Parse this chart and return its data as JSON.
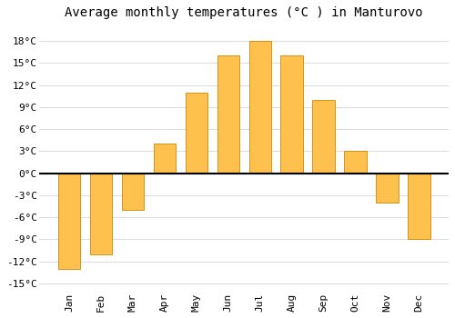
{
  "months": [
    "Jan",
    "Feb",
    "Mar",
    "Apr",
    "May",
    "Jun",
    "Jul",
    "Aug",
    "Sep",
    "Oct",
    "Nov",
    "Dec"
  ],
  "temperatures": [
    -13,
    -11,
    -5,
    4,
    11,
    16,
    18,
    16,
    10,
    3,
    -4,
    -9
  ],
  "bar_color": "#FFC14D",
  "bar_edge_color": "#CC8800",
  "title": "Average monthly temperatures (°C ) in Manturovo",
  "ylim_min": -16,
  "ylim_max": 20,
  "yticks": [
    -15,
    -12,
    -9,
    -6,
    -3,
    0,
    3,
    6,
    9,
    12,
    15,
    18
  ],
  "ytick_labels": [
    "-15°C",
    "-12°C",
    "-9°C",
    "-6°C",
    "-3°C",
    "0°C",
    "3°C",
    "6°C",
    "9°C",
    "12°C",
    "15°C",
    "18°C"
  ],
  "background_color": "#ffffff",
  "grid_color": "#dddddd",
  "zero_line_color": "#000000",
  "title_fontsize": 10,
  "tick_fontsize": 8,
  "bar_width": 0.7
}
